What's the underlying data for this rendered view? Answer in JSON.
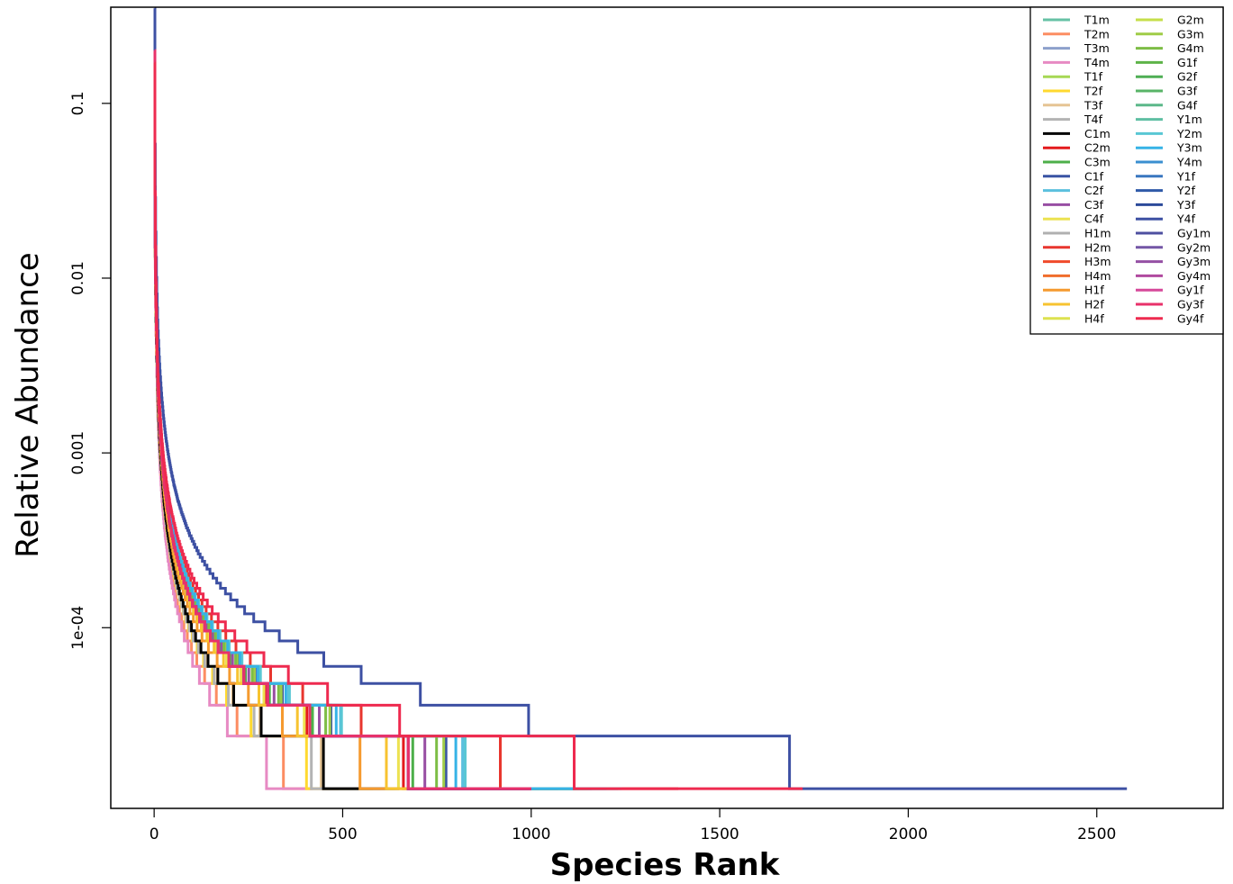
{
  "chart_data": {
    "type": "line",
    "title": "",
    "xlabel": "Species Rank",
    "ylabel": "Relative Abundance",
    "y_scale": "log",
    "xlim": [
      -115,
      2835
    ],
    "ylim": [
      9.25e-06,
      0.355
    ],
    "x_ticks": [
      0,
      500,
      1000,
      1500,
      2000,
      2500
    ],
    "x_tick_labels": [
      "0",
      "500",
      "1000",
      "1500",
      "2000",
      "2500"
    ],
    "y_ticks": [
      0.1,
      0.01,
      0.001,
      0.0001
    ],
    "y_tick_labels": [
      "0.1",
      "0.01",
      "0.001",
      "1e-04"
    ],
    "grid": false,
    "legend_position": "top-right",
    "legend_columns": 2,
    "series": [
      {
        "name": "T1m",
        "color": "#66c2a5",
        "n": 1000,
        "start": 0.2
      },
      {
        "name": "T2m",
        "color": "#fc8d62",
        "n": 490,
        "start": 0.18
      },
      {
        "name": "T3m",
        "color": "#8da0cb",
        "n": 1000,
        "start": 0.2
      },
      {
        "name": "T4m",
        "color": "#e78ac3",
        "n": 420,
        "start": 0.2
      },
      {
        "name": "T1f",
        "color": "#a6d854",
        "n": 1000,
        "start": 0.2
      },
      {
        "name": "T2f",
        "color": "#ffd92f",
        "n": 580,
        "start": 0.2
      },
      {
        "name": "T3f",
        "color": "#e5c494",
        "n": 640,
        "start": 0.2
      },
      {
        "name": "T4f",
        "color": "#b3b3b3",
        "n": 600,
        "start": 0.2
      },
      {
        "name": "C1m",
        "color": "#000000",
        "n": 650,
        "start": 0.2
      },
      {
        "name": "C2m",
        "color": "#e41a1c",
        "n": 980,
        "start": 0.2
      },
      {
        "name": "C3m",
        "color": "#4daf4a",
        "n": 1020,
        "start": 0.2
      },
      {
        "name": "C1f",
        "color": "#3953a4",
        "n": 1160,
        "start": 0.2
      },
      {
        "name": "C2f",
        "color": "#5bc0de",
        "n": 1230,
        "start": 0.2
      },
      {
        "name": "C3f",
        "color": "#984ea3",
        "n": 1070,
        "start": 0.2
      },
      {
        "name": "C4f",
        "color": "#ece251",
        "n": 960,
        "start": 0.2
      },
      {
        "name": "H1m",
        "color": "#b0b0b0",
        "n": 1000,
        "start": 0.2
      },
      {
        "name": "H2m",
        "color": "#e8362e",
        "n": 1390,
        "start": 0.2
      },
      {
        "name": "H3m",
        "color": "#f04a2a",
        "n": 1000,
        "start": 0.2
      },
      {
        "name": "H4m",
        "color": "#f06d2c",
        "n": 1000,
        "start": 0.2
      },
      {
        "name": "H1f",
        "color": "#f59a2f",
        "n": 800,
        "start": 0.2
      },
      {
        "name": "H2f",
        "color": "#f7c330",
        "n": 910,
        "start": 0.2
      },
      {
        "name": "H4f",
        "color": "#dde24f",
        "n": 1000,
        "start": 0.2
      },
      {
        "name": "G2m",
        "color": "#c6df4a",
        "n": 1000,
        "start": 0.2
      },
      {
        "name": "G3m",
        "color": "#9fcc47",
        "n": 1150,
        "start": 0.2
      },
      {
        "name": "G4m",
        "color": "#7dbd45",
        "n": 1120,
        "start": 0.2
      },
      {
        "name": "G1f",
        "color": "#5db348",
        "n": 1000,
        "start": 0.2
      },
      {
        "name": "G2f",
        "color": "#4fae54",
        "n": 1000,
        "start": 0.2
      },
      {
        "name": "G3f",
        "color": "#58b467",
        "n": 1000,
        "start": 0.2
      },
      {
        "name": "G4f",
        "color": "#5cb88a",
        "n": 1000,
        "start": 0.2
      },
      {
        "name": "Y1m",
        "color": "#5fbfa3",
        "n": 1000,
        "start": 0.2
      },
      {
        "name": "Y2m",
        "color": "#59c7d4",
        "n": 1240,
        "start": 0.2
      },
      {
        "name": "Y3m",
        "color": "#36b3e6",
        "n": 1200,
        "start": 0.2
      },
      {
        "name": "Y4m",
        "color": "#3a8fd0",
        "n": 1000,
        "start": 0.2
      },
      {
        "name": "Y1f",
        "color": "#3977bf",
        "n": 1000,
        "start": 0.2
      },
      {
        "name": "Y2f",
        "color": "#2f5aa8",
        "n": 1000,
        "start": 0.2
      },
      {
        "name": "Y3f",
        "color": "#2c4a9a",
        "n": 1000,
        "start": 0.2
      },
      {
        "name": "Y4f",
        "color": "#3d50a3",
        "n": 2580,
        "start": 0.35
      },
      {
        "name": "Gy1m",
        "color": "#4d4fa0",
        "n": 1000,
        "start": 0.2
      },
      {
        "name": "Gy2m",
        "color": "#7456a6",
        "n": 1000,
        "start": 0.2
      },
      {
        "name": "Gy3m",
        "color": "#9550a4",
        "n": 1000,
        "start": 0.2
      },
      {
        "name": "Gy4m",
        "color": "#b04a9f",
        "n": 1000,
        "start": 0.2
      },
      {
        "name": "Gy1f",
        "color": "#d6489a",
        "n": 1000,
        "start": 0.2
      },
      {
        "name": "Gy3f",
        "color": "#e8316a",
        "n": 1000,
        "start": 0.2
      },
      {
        "name": "Gy4f",
        "color": "#ee2a4f",
        "n": 1720,
        "start": 0.17
      }
    ]
  }
}
